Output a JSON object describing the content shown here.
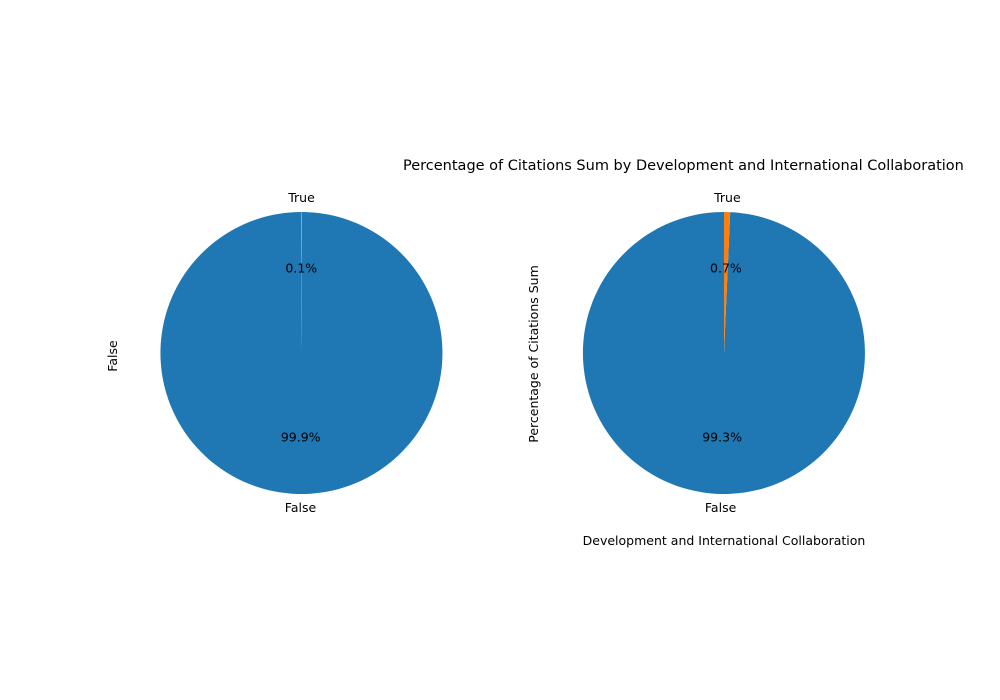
{
  "chart_data": {
    "type": "pie",
    "title": "Percentage of Citations Sum by Development and International Collaboration",
    "subplots": [
      {
        "ylabel": "False",
        "xlabel": "",
        "slices": [
          {
            "label": "False",
            "value": 99.9,
            "pct_label": "99.9%",
            "color": "#1f77b4"
          },
          {
            "label": "True",
            "value": 0.1,
            "pct_label": "0.1%",
            "color": "#ff7f0e"
          }
        ]
      },
      {
        "ylabel": "Percentage of Citations Sum",
        "xlabel": "Development and International Collaboration",
        "slices": [
          {
            "label": "False",
            "value": 99.3,
            "pct_label": "99.3%",
            "color": "#1f77b4"
          },
          {
            "label": "True",
            "value": 0.7,
            "pct_label": "0.7%",
            "color": "#ff7f0e"
          }
        ]
      }
    ]
  }
}
